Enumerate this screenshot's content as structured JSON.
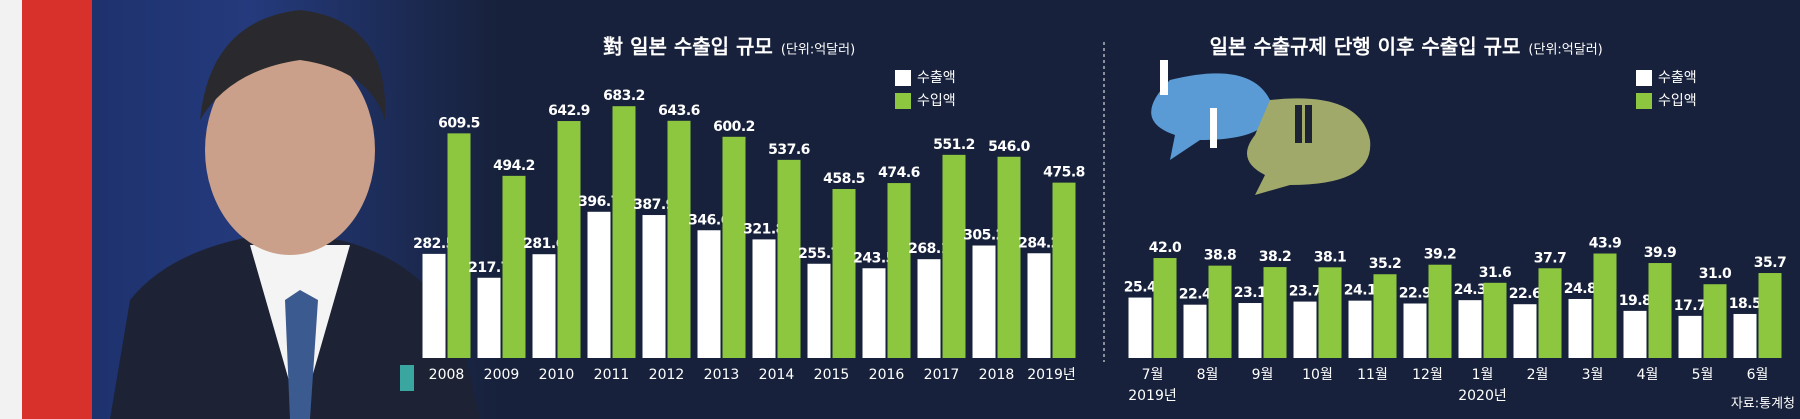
{
  "chart_data": [
    {
      "type": "bar",
      "title": "對 일본 수출입 규모",
      "subtitle": "(단위:억달러)",
      "categories": [
        "2008",
        "2009",
        "2010",
        "2011",
        "2012",
        "2013",
        "2014",
        "2015",
        "2016",
        "2017",
        "2018",
        "2019년"
      ],
      "series": [
        {
          "name": "수출액",
          "color": "#ffffff",
          "values": [
            282.5,
            217.7,
            281.6,
            396.7,
            387.9,
            346.6,
            321.8,
            255.7,
            243.5,
            268.1,
            305.2,
            284.2
          ]
        },
        {
          "name": "수입액",
          "color": "#8dc63f",
          "values": [
            609.5,
            494.2,
            642.9,
            683.2,
            643.6,
            600.2,
            537.6,
            458.5,
            474.6,
            551.2,
            546.0,
            475.8
          ],
          "value_labels": [
            "609.5",
            "494.2",
            "642.9",
            "683.2",
            "643.6",
            "600.2",
            "537.6",
            "458.5",
            "474.6",
            "551.2",
            "546.0",
            "475.8"
          ]
        }
      ],
      "ylim": [
        0,
        700
      ]
    },
    {
      "type": "bar",
      "title": "일본 수출규제 단행 이후 수출입 규모",
      "subtitle": "(단위:억달러)",
      "categories": [
        "7월",
        "8월",
        "9월",
        "10월",
        "11월",
        "12월",
        "1월",
        "2월",
        "3월",
        "4월",
        "5월",
        "6월"
      ],
      "x_group_labels": [
        "2019년",
        null,
        null,
        null,
        null,
        null,
        "2020년",
        null,
        null,
        null,
        null,
        null
      ],
      "series": [
        {
          "name": "수출액",
          "color": "#ffffff",
          "values": [
            25.4,
            22.4,
            23.1,
            23.7,
            24.1,
            22.9,
            24.3,
            22.6,
            24.8,
            19.8,
            17.7,
            18.5
          ]
        },
        {
          "name": "수입액",
          "color": "#8dc63f",
          "values": [
            42.0,
            38.8,
            38.2,
            38.1,
            35.2,
            39.2,
            31.6,
            37.7,
            43.9,
            39.9,
            31.0,
            35.7
          ],
          "value_labels": [
            "42.0",
            "38.8",
            "38.2",
            "38.1",
            "35.2",
            "39.2",
            "31.6",
            "37.7",
            "43.9",
            "39.9",
            "31.0",
            "35.7"
          ]
        }
      ],
      "ylim": [
        0,
        50
      ],
      "source": "자료:통계청"
    }
  ]
}
